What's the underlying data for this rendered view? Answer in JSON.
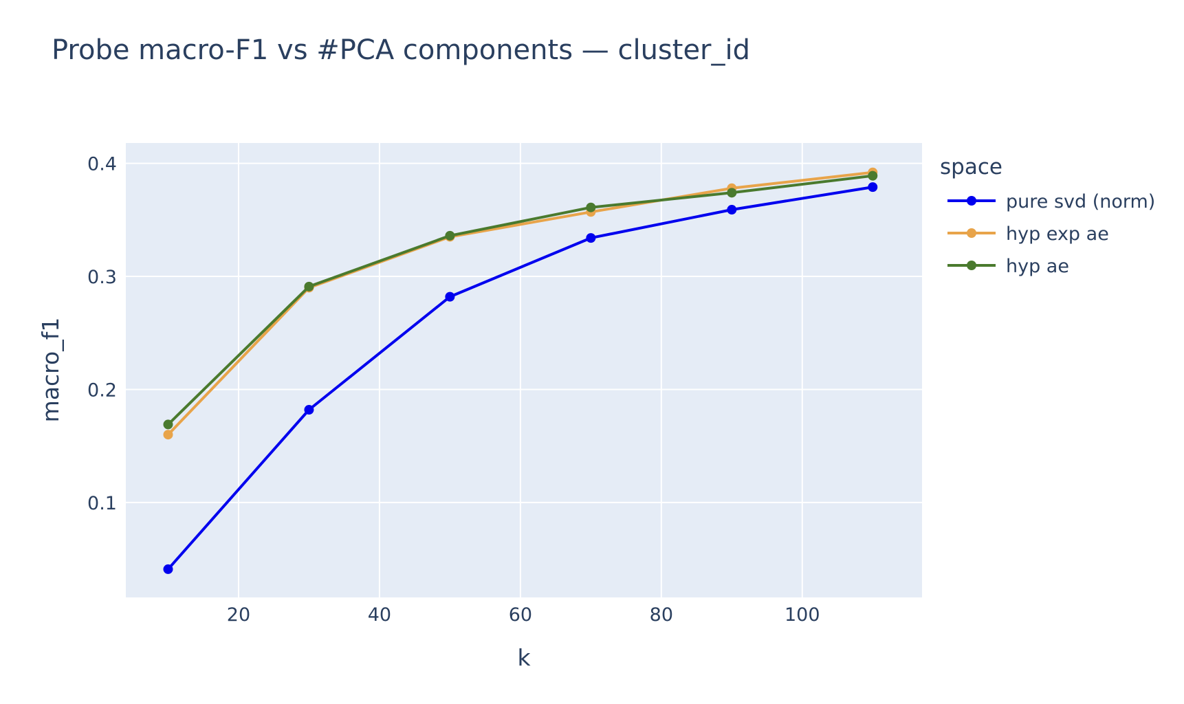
{
  "chart_data": {
    "type": "line",
    "title": "Probe macro-F1 vs #PCA components — cluster_id",
    "xlabel": "k",
    "ylabel": "macro_f1",
    "xlim": [
      4,
      117
    ],
    "ylim": [
      0.016,
      0.418
    ],
    "xticks": [
      20,
      40,
      60,
      80,
      100
    ],
    "yticks": [
      0.1,
      0.2,
      0.3,
      0.4
    ],
    "ytick_labels": [
      "0.1",
      "0.2",
      "0.3",
      "0.4"
    ],
    "grid": true,
    "legend": {
      "title": "space",
      "position": "right"
    },
    "x": [
      10,
      30,
      50,
      70,
      90,
      110
    ],
    "series": [
      {
        "name": "pure svd (norm)",
        "color": "#0000ee",
        "values": [
          0.041,
          0.182,
          0.282,
          0.334,
          0.359,
          0.379
        ]
      },
      {
        "name": "hyp exp ae",
        "color": "#e8a44a",
        "values": [
          0.16,
          0.29,
          0.335,
          0.357,
          0.378,
          0.392
        ]
      },
      {
        "name": "hyp ae",
        "color": "#4a7a2e",
        "values": [
          0.169,
          0.291,
          0.336,
          0.361,
          0.374,
          0.389
        ]
      }
    ]
  }
}
